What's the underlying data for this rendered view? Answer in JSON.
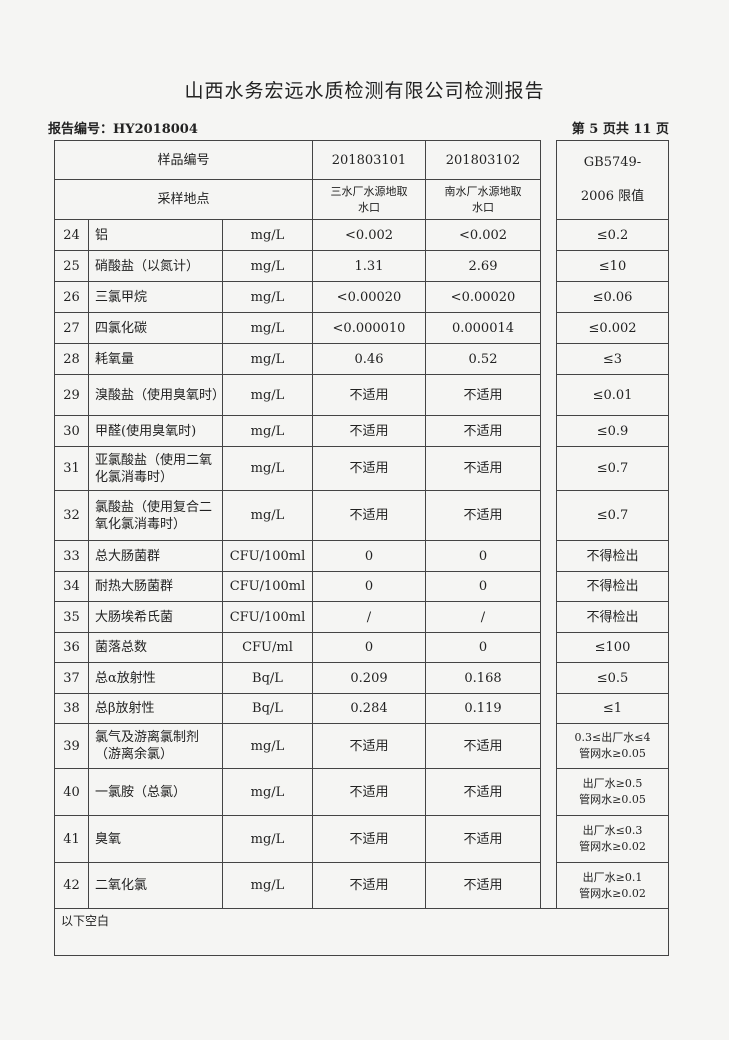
{
  "title": "山西水务宏远水质检测有限公司检测报告",
  "report_no": "报告编号：HY2018004",
  "page_info": "第 5 页共 11 页",
  "header": {
    "sample_no_label": "样品编号",
    "sample1": "201803101",
    "sample2": "201803102",
    "limit_label_1": "GB5749-",
    "limit_label_2": "2006 限值",
    "location_label": "采样地点",
    "loc1_a": "三水厂水源地取",
    "loc1_b": "水口",
    "loc2_a": "南水厂水源地取",
    "loc2_b": "水口"
  },
  "rows": [
    {
      "no": "24",
      "name": "铝",
      "unit": "mg/L",
      "v1": "<0.002",
      "v2": "<0.002",
      "limit": "≤0.2"
    },
    {
      "no": "25",
      "name": "硝酸盐（以氮计）",
      "unit": "mg/L",
      "v1": "1.31",
      "v2": "2.69",
      "limit": "≤10"
    },
    {
      "no": "26",
      "name": "三氯甲烷",
      "unit": "mg/L",
      "v1": "<0.00020",
      "v2": "<0.00020",
      "limit": "≤0.06"
    },
    {
      "no": "27",
      "name": "四氯化碳",
      "unit": "mg/L",
      "v1": "<0.000010",
      "v2": "0.000014",
      "limit": "≤0.002"
    },
    {
      "no": "28",
      "name": "耗氧量",
      "unit": "mg/L",
      "v1": "0.46",
      "v2": "0.52",
      "limit": "≤3"
    },
    {
      "no": "29",
      "name": "溴酸盐（使用臭氧时）",
      "unit": "mg/L",
      "v1": "不适用",
      "v2": "不适用",
      "limit": "≤0.01"
    },
    {
      "no": "30",
      "name": "甲醛(使用臭氧时)",
      "unit": "mg/L",
      "v1": "不适用",
      "v2": "不适用",
      "limit": "≤0.9"
    },
    {
      "no": "31",
      "name": "亚氯酸盐（使用二氧化氯消毒时）",
      "unit": "mg/L",
      "v1": "不适用",
      "v2": "不适用",
      "limit": "≤0.7"
    },
    {
      "no": "32",
      "name": "氯酸盐（使用复合二氧化氯消毒时）",
      "unit": "mg/L",
      "v1": "不适用",
      "v2": "不适用",
      "limit": "≤0.7"
    },
    {
      "no": "33",
      "name": "总大肠菌群",
      "unit": "CFU/100ml",
      "v1": "0",
      "v2": "0",
      "limit": "不得检出"
    },
    {
      "no": "34",
      "name": "耐热大肠菌群",
      "unit": "CFU/100ml",
      "v1": "0",
      "v2": "0",
      "limit": "不得检出"
    },
    {
      "no": "35",
      "name": "大肠埃希氏菌",
      "unit": "CFU/100ml",
      "v1": "/",
      "v2": "/",
      "limit": "不得检出"
    },
    {
      "no": "36",
      "name": "菌落总数",
      "unit": "CFU/ml",
      "v1": "0",
      "v2": "0",
      "limit": "≤100"
    },
    {
      "no": "37",
      "name": "总α放射性",
      "unit": "Bq/L",
      "v1": "0.209",
      "v2": "0.168",
      "limit": "≤0.5"
    },
    {
      "no": "38",
      "name": "总β放射性",
      "unit": "Bq/L",
      "v1": "0.284",
      "v2": "0.119",
      "limit": "≤1"
    },
    {
      "no": "39",
      "name": "氯气及游离氯制剂（游离余氯）",
      "unit": "mg/L",
      "v1": "不适用",
      "v2": "不适用",
      "limit": "0.3≤出厂水≤4",
      "limit2": "管网水≥0.05"
    },
    {
      "no": "40",
      "name": "一氯胺（总氯）",
      "unit": "mg/L",
      "v1": "不适用",
      "v2": "不适用",
      "limit": "出厂水≥0.5",
      "limit2": "管网水≥0.05"
    },
    {
      "no": "41",
      "name": "臭氧",
      "unit": "mg/L",
      "v1": "不适用",
      "v2": "不适用",
      "limit": "出厂水≤0.3",
      "limit2": "管网水≥0.02"
    },
    {
      "no": "42",
      "name": "二氧化氯",
      "unit": "mg/L",
      "v1": "不适用",
      "v2": "不适用",
      "limit": "出厂水≥0.1",
      "limit2": "管网水≥0.02"
    }
  ],
  "footer_note": "以下空白"
}
